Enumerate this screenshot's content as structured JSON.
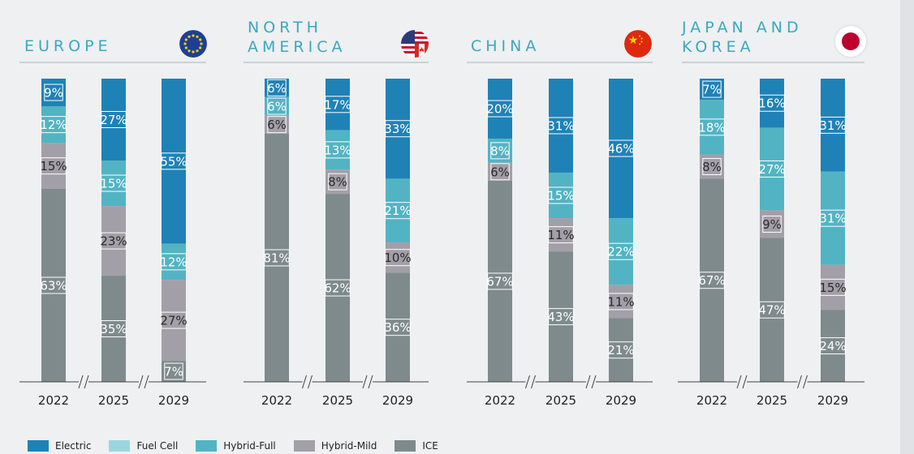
{
  "colors": {
    "Electric": "#1f82b6",
    "Fuel Cell": "#9bd6df",
    "Hybrid-Full": "#52b4c3",
    "Hybrid-Mild": "#a39fa8",
    "ICE": "#7f8a8d"
  },
  "regions": [
    {
      "title_lines": [
        "EUROPE"
      ],
      "flag": "eu-flag-icon"
    },
    {
      "title_lines": [
        "NORTH",
        "AMERICA"
      ],
      "flag": "north-america-flag-icon"
    },
    {
      "title_lines": [
        "CHINA"
      ],
      "flag": "china-flag-icon"
    },
    {
      "title_lines": [
        "JAPAN AND",
        "KOREA"
      ],
      "flag": "japan-flag-icon"
    }
  ],
  "legend": [
    {
      "label": "Electric",
      "color": "#1f82b6"
    },
    {
      "label": "Fuel Cell",
      "color": "#9bd6df"
    },
    {
      "label": "Hybrid-Full",
      "color": "#52b4c3"
    },
    {
      "label": "Hybrid-Mild",
      "color": "#a39fa8"
    },
    {
      "label": "ICE",
      "color": "#7f8a8d"
    }
  ],
  "chart_data": [
    {
      "type": "bar",
      "stacked": true,
      "title": "EUROPE",
      "categories": [
        "2022",
        "2025",
        "2029"
      ],
      "series": [
        {
          "name": "Electric",
          "values": [
            9,
            27,
            55
          ]
        },
        {
          "name": "Fuel Cell",
          "values": [
            0,
            0,
            0
          ]
        },
        {
          "name": "Hybrid-Full",
          "values": [
            12,
            15,
            12
          ]
        },
        {
          "name": "Hybrid-Mild",
          "values": [
            15,
            23,
            27
          ]
        },
        {
          "name": "ICE",
          "values": [
            63,
            35,
            7
          ]
        }
      ],
      "ylim": [
        0,
        100
      ]
    },
    {
      "type": "bar",
      "stacked": true,
      "title": "NORTH AMERICA",
      "categories": [
        "2022",
        "2025",
        "2029"
      ],
      "series": [
        {
          "name": "Electric",
          "values": [
            6,
            17,
            33
          ]
        },
        {
          "name": "Fuel Cell",
          "values": [
            0,
            0,
            0
          ]
        },
        {
          "name": "Hybrid-Full",
          "values": [
            6,
            13,
            21
          ]
        },
        {
          "name": "Hybrid-Mild",
          "values": [
            6,
            8,
            10
          ]
        },
        {
          "name": "ICE",
          "values": [
            81,
            62,
            36
          ]
        }
      ],
      "ylim": [
        0,
        100
      ]
    },
    {
      "type": "bar",
      "stacked": true,
      "title": "CHINA",
      "categories": [
        "2022",
        "2025",
        "2029"
      ],
      "series": [
        {
          "name": "Electric",
          "values": [
            20,
            31,
            46
          ]
        },
        {
          "name": "Fuel Cell",
          "values": [
            0,
            0,
            0
          ]
        },
        {
          "name": "Hybrid-Full",
          "values": [
            8,
            15,
            22
          ]
        },
        {
          "name": "Hybrid-Mild",
          "values": [
            6,
            11,
            11
          ]
        },
        {
          "name": "ICE",
          "values": [
            67,
            43,
            21
          ]
        }
      ],
      "ylim": [
        0,
        100
      ]
    },
    {
      "type": "bar",
      "stacked": true,
      "title": "JAPAN AND KOREA",
      "categories": [
        "2022",
        "2025",
        "2029"
      ],
      "series": [
        {
          "name": "Electric",
          "values": [
            7,
            16,
            31
          ]
        },
        {
          "name": "Fuel Cell",
          "values": [
            0,
            0,
            0
          ]
        },
        {
          "name": "Hybrid-Full",
          "values": [
            18,
            27,
            31
          ]
        },
        {
          "name": "Hybrid-Mild",
          "values": [
            8,
            9,
            15
          ]
        },
        {
          "name": "ICE",
          "values": [
            67,
            47,
            24
          ]
        }
      ],
      "ylim": [
        0,
        100
      ]
    }
  ]
}
